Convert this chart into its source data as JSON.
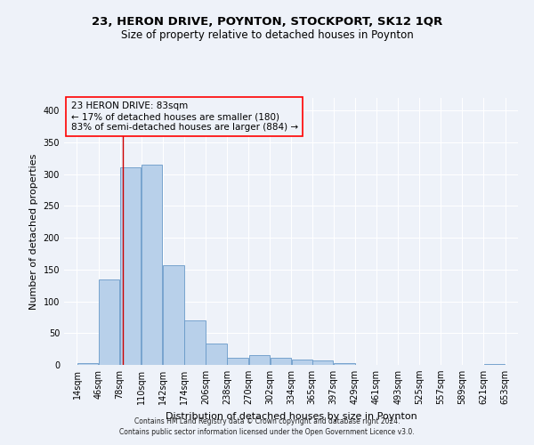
{
  "title": "23, HERON DRIVE, POYNTON, STOCKPORT, SK12 1QR",
  "subtitle": "Size of property relative to detached houses in Poynton",
  "xlabel": "Distribution of detached houses by size in Poynton",
  "ylabel": "Number of detached properties",
  "footnote1": "Contains HM Land Registry data © Crown copyright and database right 2024.",
  "footnote2": "Contains public sector information licensed under the Open Government Licence v3.0.",
  "annotation_line1": "23 HERON DRIVE: 83sqm",
  "annotation_line2": "← 17% of detached houses are smaller (180)",
  "annotation_line3": "83% of semi-detached houses are larger (884) →",
  "bar_color": "#b8d0ea",
  "bar_edge_color": "#6899c8",
  "redline_color": "#cc0000",
  "redline_x": 83,
  "bins": [
    14,
    46,
    78,
    110,
    142,
    174,
    206,
    238,
    270,
    302,
    334,
    365,
    397,
    429,
    461,
    493,
    525,
    557,
    589,
    621,
    653
  ],
  "bar_heights": [
    3,
    135,
    311,
    315,
    157,
    70,
    33,
    11,
    15,
    11,
    9,
    7,
    3,
    0,
    0,
    0,
    0,
    0,
    0,
    2
  ],
  "ylim": [
    0,
    420
  ],
  "yticks": [
    0,
    50,
    100,
    150,
    200,
    250,
    300,
    350,
    400
  ],
  "background_color": "#eef2f9",
  "grid_color": "#ffffff",
  "title_fontsize": 9.5,
  "subtitle_fontsize": 8.5,
  "xlabel_fontsize": 8,
  "ylabel_fontsize": 8,
  "tick_fontsize": 7,
  "annotation_fontsize": 7.5,
  "footnote_fontsize": 5.5
}
